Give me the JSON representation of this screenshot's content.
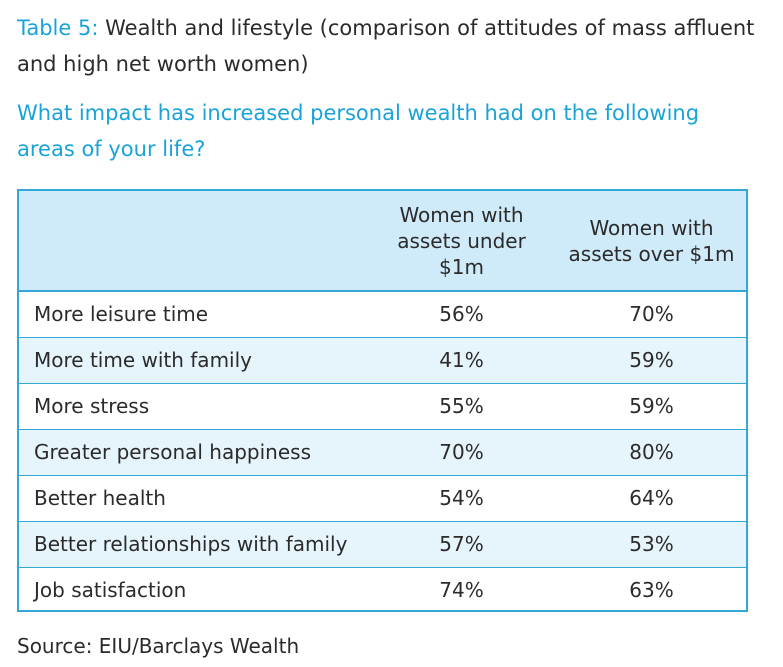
{
  "title": {
    "label": "Table 5:",
    "text": "Wealth and lifestyle (comparison of attitudes of mass affluent and high net worth women)"
  },
  "subtitle": "What impact has increased personal wealth had on the following areas of your life?",
  "source": "Source: EIU/Barclays Wealth",
  "colors": {
    "accent": "#1aa3d9",
    "border": "#33a7d8",
    "header_bg": "#cfeaf8",
    "alt_row_bg": "#e6f4fb"
  },
  "chart_data": {
    "type": "table",
    "columns": [
      "",
      "Women with assets under $1m",
      "Women with assets over $1m"
    ],
    "rows": [
      [
        "More leisure time",
        "56%",
        "70%"
      ],
      [
        "More time with family",
        "41%",
        "59%"
      ],
      [
        "More stress",
        "55%",
        "59%"
      ],
      [
        "Greater personal happiness",
        "70%",
        "80%"
      ],
      [
        "Better health",
        "54%",
        "64%"
      ],
      [
        "Better relationships with family",
        "57%",
        "53%"
      ],
      [
        "Job satisfaction",
        "74%",
        "63%"
      ]
    ]
  }
}
